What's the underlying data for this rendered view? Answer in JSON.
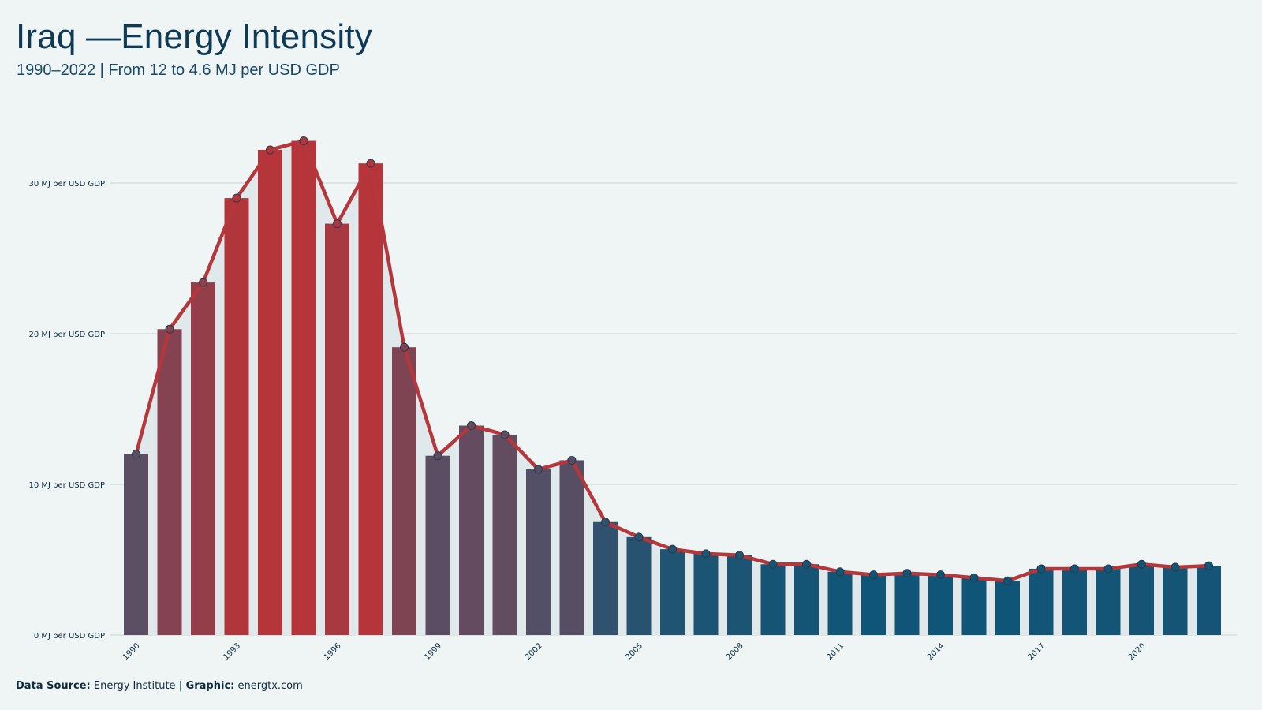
{
  "header": {
    "title": "Iraq —Energy Intensity",
    "subtitle": "1990–2022 | From 12 to 4.6 MJ per USD GDP"
  },
  "footer": {
    "source_label": "Data Source:",
    "source_value": "Energy Institute",
    "separator": "|",
    "graphic_label": "Graphic:",
    "graphic_value": "energtx.com"
  },
  "colors": {
    "background": "#eff5f5",
    "line": "#b5373c",
    "high": "#b5353a",
    "low": "#0f5577",
    "mid": "#5c4e63",
    "area": "#dfe8ea",
    "grid": "#d0d9dd"
  },
  "chart_data": {
    "type": "bar",
    "title": "Iraq —Energy Intensity",
    "subtitle": "1990–2022 | From 12 to 4.6 MJ per USD GDP",
    "x": [
      1990,
      1991,
      1992,
      1993,
      1994,
      1995,
      1996,
      1997,
      1998,
      1999,
      2000,
      2001,
      2002,
      2003,
      2004,
      2005,
      2006,
      2007,
      2008,
      2009,
      2010,
      2011,
      2012,
      2013,
      2014,
      2015,
      2016,
      2017,
      2018,
      2019,
      2020,
      2021,
      2022
    ],
    "values": [
      12.0,
      20.3,
      23.4,
      29.0,
      32.2,
      32.8,
      27.3,
      31.3,
      19.1,
      11.9,
      13.9,
      13.3,
      11.0,
      11.6,
      7.5,
      6.5,
      5.7,
      5.4,
      5.3,
      4.7,
      4.7,
      4.2,
      4.0,
      4.1,
      4.0,
      3.8,
      3.6,
      4.4,
      4.4,
      4.4,
      4.7,
      4.5,
      4.6
    ],
    "overlay": "line with markers",
    "ylim": [
      0,
      35
    ],
    "yticks": [
      0,
      10,
      20,
      30
    ],
    "ytick_labels": [
      "0 MJ per USD GDP",
      "10 MJ per USD GDP",
      "20 MJ per USD GDP",
      "30 MJ per USD GDP"
    ],
    "xtick_labels": [
      "1990",
      "1993",
      "1996",
      "1999",
      "2002",
      "2005",
      "2008",
      "2011",
      "2014",
      "2017",
      "2020"
    ],
    "xtick_years": [
      1990,
      1993,
      1996,
      1999,
      2002,
      2005,
      2008,
      2011,
      2014,
      2017,
      2020
    ],
    "xlabel": "",
    "ylabel": "",
    "grid": "horizontal",
    "legend": "none"
  }
}
